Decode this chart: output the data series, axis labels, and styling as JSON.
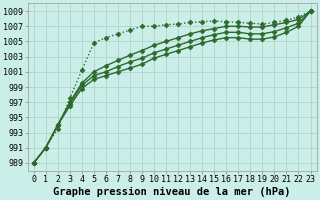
{
  "bg_color": "#cceee8",
  "grid_color": "#b0d8d0",
  "line_color": "#2d6a2d",
  "xlabel": "Graphe pression niveau de la mer (hPa)",
  "xlim": [
    -0.5,
    23.5
  ],
  "ylim": [
    988,
    1010
  ],
  "yticks": [
    989,
    991,
    993,
    995,
    997,
    999,
    1001,
    1003,
    1005,
    1007,
    1009
  ],
  "xticks": [
    0,
    1,
    2,
    3,
    4,
    5,
    6,
    7,
    8,
    9,
    10,
    11,
    12,
    13,
    14,
    15,
    16,
    17,
    18,
    19,
    20,
    21,
    22,
    23
  ],
  "series": [
    {
      "y": [
        989,
        991,
        993.5,
        997.5,
        1001.2,
        1004.8,
        1005.5,
        1006.0,
        1006.5,
        1007.0,
        1007.0,
        1007.2,
        1007.3,
        1007.5,
        1007.6,
        1007.7,
        1007.6,
        1007.5,
        1007.4,
        1007.3,
        1007.5,
        1007.8,
        1008.2,
        1009.0
      ],
      "linestyle": "dotted",
      "marker": "D",
      "markersize": 2.5,
      "linewidth": 1.0,
      "zorder": 5
    },
    {
      "y": [
        989,
        991,
        994.0,
        997.0,
        999.5,
        1001.0,
        1001.8,
        1002.5,
        1003.2,
        1003.8,
        1004.5,
        1005.0,
        1005.5,
        1006.0,
        1006.4,
        1006.7,
        1007.0,
        1007.0,
        1006.9,
        1006.9,
        1007.2,
        1007.5,
        1007.9,
        1009.0
      ],
      "linestyle": "solid",
      "marker": "D",
      "markersize": 2.5,
      "linewidth": 1.0,
      "zorder": 4
    },
    {
      "y": [
        989,
        991,
        994.0,
        996.8,
        999.2,
        1000.5,
        1001.0,
        1001.7,
        1002.3,
        1002.8,
        1003.5,
        1004.0,
        1004.5,
        1005.0,
        1005.5,
        1005.9,
        1006.2,
        1006.2,
        1006.0,
        1006.0,
        1006.3,
        1006.8,
        1007.4,
        1009.0
      ],
      "linestyle": "solid",
      "marker": "D",
      "markersize": 2.5,
      "linewidth": 1.0,
      "zorder": 3
    },
    {
      "y": [
        989,
        991,
        994.0,
        996.5,
        998.8,
        1000.0,
        1000.5,
        1001.0,
        1001.5,
        1002.0,
        1002.8,
        1003.3,
        1003.8,
        1004.3,
        1004.8,
        1005.2,
        1005.5,
        1005.5,
        1005.3,
        1005.3,
        1005.6,
        1006.2,
        1007.0,
        1009.0
      ],
      "linestyle": "solid",
      "marker": "D",
      "markersize": 2.5,
      "linewidth": 1.0,
      "zorder": 2
    }
  ],
  "xlabel_fontsize": 7.5,
  "tick_fontsize": 6.0,
  "xlabel_fontweight": "bold"
}
